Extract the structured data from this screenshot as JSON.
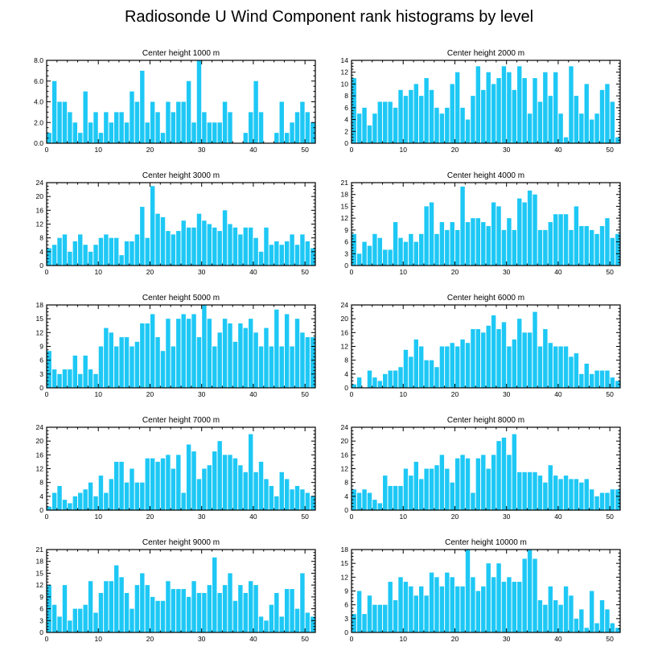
{
  "title": "Radiosonde U Wind Component rank histograms by level",
  "colors": {
    "bar": "#1ec8f5",
    "bar_edge": "#ffffff",
    "axis": "#000000"
  },
  "chart_data": [
    {
      "type": "bar",
      "title": "Center height 1000 m",
      "xlim": [
        0,
        52
      ],
      "ylim": [
        0,
        8
      ],
      "yticks": [
        "0.0",
        "2.0",
        "4.0",
        "6.0",
        "8.0"
      ],
      "xticks": [
        0,
        10,
        20,
        30,
        40,
        50
      ],
      "values": [
        1,
        6,
        4,
        4,
        3,
        2,
        1,
        5,
        2,
        3,
        1,
        3,
        2,
        3,
        3,
        2,
        5,
        4,
        7,
        2,
        4,
        3,
        1,
        4,
        3,
        4,
        4,
        6,
        2,
        8,
        3,
        2,
        2,
        2,
        4,
        3,
        0,
        0,
        1,
        3,
        6,
        3,
        0,
        0,
        1,
        4,
        1,
        2,
        3,
        4,
        3,
        2
      ]
    },
    {
      "type": "bar",
      "title": "Center height 2000 m",
      "xlim": [
        0,
        52
      ],
      "ylim": [
        0,
        14
      ],
      "yticks": [
        "0",
        "2",
        "4",
        "6",
        "8",
        "10",
        "12",
        "14"
      ],
      "xticks": [
        0,
        10,
        20,
        30,
        40,
        50
      ],
      "values": [
        11,
        5,
        6,
        3,
        5,
        7,
        7,
        7,
        6,
        9,
        8,
        9,
        10,
        8,
        11,
        9,
        6,
        5,
        6,
        10,
        12,
        6,
        4,
        8,
        13,
        9,
        12,
        10,
        11,
        13,
        12,
        9,
        13,
        11,
        5,
        11,
        7,
        12,
        8,
        12,
        5,
        1,
        13,
        8,
        5,
        10,
        4,
        5,
        9,
        10,
        7,
        1
      ]
    },
    {
      "type": "bar",
      "title": "Center height 3000 m",
      "xlim": [
        0,
        52
      ],
      "ylim": [
        0,
        24
      ],
      "yticks": [
        "0",
        "4",
        "8",
        "12",
        "16",
        "20",
        "24"
      ],
      "xticks": [
        0,
        10,
        20,
        30,
        40,
        50
      ],
      "values": [
        5,
        6,
        8,
        9,
        4,
        7,
        9,
        6,
        4,
        6,
        8,
        9,
        8,
        8,
        3,
        7,
        7,
        9,
        17,
        8,
        23,
        15,
        14,
        10,
        9,
        10,
        13,
        11,
        11,
        15,
        13,
        12,
        11,
        10,
        16,
        12,
        11,
        9,
        11,
        11,
        8,
        4,
        11,
        6,
        7,
        6,
        7,
        9,
        6,
        9,
        7,
        5
      ]
    },
    {
      "type": "bar",
      "title": "Center height 4000 m",
      "xlim": [
        0,
        52
      ],
      "ylim": [
        0,
        21
      ],
      "yticks": [
        "0",
        "3",
        "6",
        "9",
        "12",
        "15",
        "18",
        "21"
      ],
      "xticks": [
        0,
        10,
        20,
        30,
        40,
        50
      ],
      "values": [
        8,
        3,
        6,
        5,
        8,
        7,
        4,
        4,
        11,
        7,
        6,
        8,
        6,
        8,
        15,
        16,
        8,
        11,
        9,
        11,
        9,
        20,
        11,
        12,
        12,
        11,
        10,
        16,
        15,
        9,
        12,
        9,
        17,
        16,
        19,
        18,
        9,
        9,
        11,
        13,
        13,
        13,
        9,
        15,
        10,
        10,
        9,
        8,
        10,
        12,
        7,
        8
      ]
    },
    {
      "type": "bar",
      "title": "Center height 5000 m",
      "xlim": [
        0,
        52
      ],
      "ylim": [
        0,
        18
      ],
      "yticks": [
        "0",
        "3",
        "6",
        "9",
        "12",
        "15",
        "18"
      ],
      "xticks": [
        0,
        10,
        20,
        30,
        40,
        50
      ],
      "values": [
        8,
        4,
        3,
        4,
        4,
        7,
        3,
        7,
        4,
        3,
        9,
        13,
        12,
        9,
        11,
        11,
        9,
        10,
        14,
        14,
        16,
        11,
        8,
        15,
        9,
        15,
        16,
        15,
        16,
        11,
        18,
        15,
        9,
        12,
        15,
        14,
        10,
        14,
        13,
        15,
        12,
        9,
        13,
        9,
        17,
        9,
        16,
        9,
        15,
        12,
        11,
        11
      ]
    },
    {
      "type": "bar",
      "title": "Center height 6000 m",
      "xlim": [
        0,
        52
      ],
      "ylim": [
        0,
        24
      ],
      "yticks": [
        "0",
        "4",
        "8",
        "12",
        "16",
        "20",
        "24"
      ],
      "xticks": [
        0,
        10,
        20,
        30,
        40,
        50
      ],
      "values": [
        1,
        3,
        0,
        5,
        3,
        2,
        4,
        5,
        5,
        6,
        11,
        9,
        14,
        12,
        8,
        8,
        6,
        12,
        12,
        13,
        12,
        14,
        13,
        17,
        17,
        16,
        18,
        21,
        17,
        19,
        12,
        14,
        20,
        16,
        16,
        22,
        12,
        17,
        13,
        12,
        12,
        12,
        9,
        10,
        4,
        7,
        4,
        5,
        5,
        5,
        3,
        2
      ]
    },
    {
      "type": "bar",
      "title": "Center height 7000 m",
      "xlim": [
        0,
        52
      ],
      "ylim": [
        0,
        24
      ],
      "yticks": [
        "0",
        "4",
        "8",
        "12",
        "16",
        "20",
        "24"
      ],
      "xticks": [
        0,
        10,
        20,
        30,
        40,
        50
      ],
      "values": [
        1,
        5,
        7,
        3,
        2,
        4,
        5,
        6,
        8,
        4,
        10,
        5,
        9,
        14,
        14,
        8,
        12,
        8,
        8,
        15,
        15,
        14,
        15,
        16,
        12,
        16,
        5,
        19,
        17,
        9,
        12,
        13,
        17,
        20,
        16,
        16,
        15,
        13,
        11,
        22,
        11,
        14,
        9,
        7,
        4,
        11,
        9,
        6,
        7,
        6,
        5,
        4
      ]
    },
    {
      "type": "bar",
      "title": "Center height 8000 m",
      "xlim": [
        0,
        52
      ],
      "ylim": [
        0,
        24
      ],
      "yticks": [
        "0",
        "4",
        "8",
        "12",
        "16",
        "20",
        "24"
      ],
      "xticks": [
        0,
        10,
        20,
        30,
        40,
        50
      ],
      "values": [
        6,
        5,
        6,
        5,
        3,
        2,
        10,
        7,
        7,
        7,
        12,
        10,
        14,
        9,
        12,
        12,
        13,
        16,
        12,
        8,
        15,
        16,
        15,
        5,
        15,
        16,
        12,
        16,
        20,
        21,
        16,
        22,
        11,
        11,
        11,
        11,
        10,
        8,
        13,
        10,
        9,
        10,
        9,
        9,
        8,
        9,
        6,
        4,
        5,
        5,
        6,
        6
      ]
    },
    {
      "type": "bar",
      "title": "Center height 9000 m",
      "xlim": [
        0,
        52
      ],
      "ylim": [
        0,
        21
      ],
      "yticks": [
        "0",
        "3",
        "6",
        "9",
        "12",
        "15",
        "18",
        "21"
      ],
      "xticks": [
        0,
        10,
        20,
        30,
        40,
        50
      ],
      "values": [
        12,
        7,
        4,
        12,
        3,
        6,
        6,
        7,
        13,
        5,
        10,
        13,
        13,
        17,
        14,
        10,
        6,
        12,
        15,
        12,
        9,
        8,
        8,
        13,
        11,
        11,
        11,
        9,
        13,
        10,
        10,
        12,
        19,
        10,
        12,
        15,
        8,
        12,
        10,
        13,
        12,
        4,
        3,
        7,
        10,
        4,
        11,
        11,
        6,
        15,
        5,
        4
      ]
    },
    {
      "type": "bar",
      "title": "Center height 10000 m",
      "xlim": [
        0,
        52
      ],
      "ylim": [
        0,
        18
      ],
      "yticks": [
        "0",
        "3",
        "6",
        "9",
        "12",
        "15",
        "18"
      ],
      "xticks": [
        0,
        10,
        20,
        30,
        40,
        50
      ],
      "values": [
        4,
        9,
        4,
        8,
        6,
        6,
        6,
        11,
        7,
        12,
        11,
        10,
        8,
        10,
        8,
        13,
        12,
        10,
        13,
        12,
        10,
        10,
        18,
        12,
        9,
        10,
        15,
        12,
        15,
        11,
        12,
        11,
        11,
        16,
        18,
        16,
        7,
        6,
        10,
        7,
        6,
        10,
        8,
        3,
        5,
        1,
        9,
        2,
        7,
        5,
        2,
        1
      ]
    }
  ]
}
